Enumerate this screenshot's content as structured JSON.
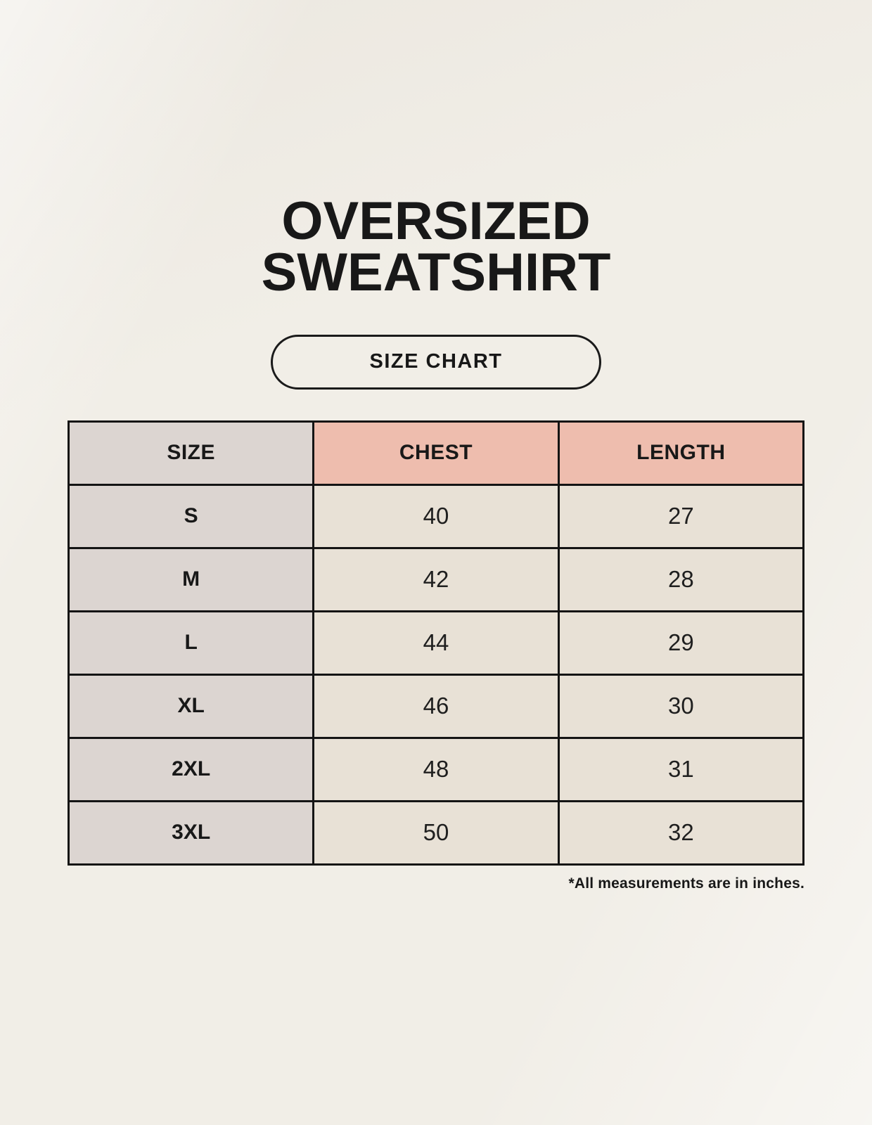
{
  "title": {
    "line1": "OVERSIZED",
    "line2": "SWEATSHIRT"
  },
  "button": {
    "label": "SIZE CHART"
  },
  "footnote": {
    "text": "*All measurements are in inches."
  },
  "chart_data": {
    "type": "table",
    "title": "OVERSIZED SWEATSHIRT",
    "subtitle": "SIZE CHART",
    "columns": [
      "SIZE",
      "CHEST",
      "LENGTH"
    ],
    "rows": [
      [
        "S",
        "40",
        "27"
      ],
      [
        "M",
        "42",
        "28"
      ],
      [
        "L",
        "44",
        "29"
      ],
      [
        "XL",
        "46",
        "30"
      ],
      [
        "2XL",
        "48",
        "31"
      ],
      [
        "3XL",
        "50",
        "32"
      ]
    ],
    "units": "inches",
    "note": "*All measurements are in inches."
  },
  "colors": {
    "page-bg": "#F1EEE7",
    "table-gray": "#DCD5D1",
    "table-pink": "#EEBDAE",
    "table-cream": "#E8E1D6",
    "table-border": "#141414",
    "text-ink": "#181818"
  }
}
